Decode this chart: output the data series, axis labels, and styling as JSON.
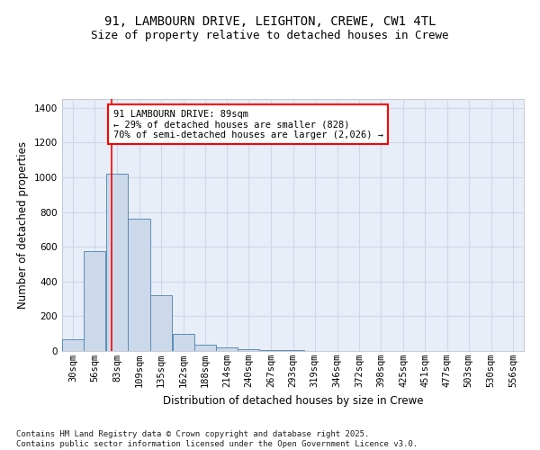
{
  "title1": "91, LAMBOURN DRIVE, LEIGHTON, CREWE, CW1 4TL",
  "title2": "Size of property relative to detached houses in Crewe",
  "xlabel": "Distribution of detached houses by size in Crewe",
  "ylabel": "Number of detached properties",
  "bin_labels": [
    "30sqm",
    "56sqm",
    "83sqm",
    "109sqm",
    "135sqm",
    "162sqm",
    "188sqm",
    "214sqm",
    "240sqm",
    "267sqm",
    "293sqm",
    "319sqm",
    "346sqm",
    "372sqm",
    "398sqm",
    "425sqm",
    "451sqm",
    "477sqm",
    "503sqm",
    "530sqm",
    "556sqm"
  ],
  "bin_left_edges": [
    30,
    56,
    83,
    109,
    135,
    162,
    188,
    214,
    240,
    267,
    293,
    319,
    346,
    372,
    398,
    425,
    451,
    477,
    503,
    530,
    556
  ],
  "bin_width": 26,
  "bar_heights": [
    65,
    575,
    1020,
    760,
    320,
    100,
    35,
    20,
    10,
    5,
    3,
    2,
    1,
    1,
    0,
    0,
    0,
    0,
    0,
    0,
    0
  ],
  "bar_color": "#ccd9ea",
  "bar_edge_color": "#5b8db8",
  "red_line_x": 89,
  "annotation_text": "91 LAMBOURN DRIVE: 89sqm\n← 29% of detached houses are smaller (828)\n70% of semi-detached houses are larger (2,026) →",
  "annotation_box_color": "white",
  "annotation_box_edge_color": "red",
  "ylim": [
    0,
    1450
  ],
  "yticks": [
    0,
    200,
    400,
    600,
    800,
    1000,
    1200,
    1400
  ],
  "grid_color": "#d0d8e8",
  "background_color": "#e8eef8",
  "footer_text": "Contains HM Land Registry data © Crown copyright and database right 2025.\nContains public sector information licensed under the Open Government Licence v3.0.",
  "title1_fontsize": 10,
  "title2_fontsize": 9,
  "xlabel_fontsize": 8.5,
  "ylabel_fontsize": 8.5,
  "tick_fontsize": 7.5,
  "annotation_fontsize": 7.5,
  "footer_fontsize": 6.5
}
